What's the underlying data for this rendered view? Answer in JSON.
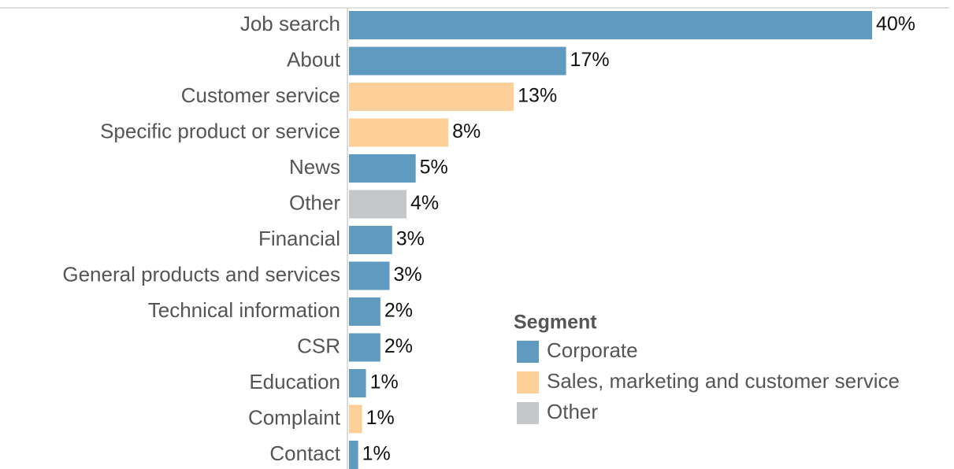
{
  "chart_data": {
    "type": "bar",
    "orientation": "horizontal",
    "categories": [
      "Job search",
      "About",
      "Customer service",
      "Specific product or service",
      "News",
      "Other",
      "Financial",
      "General products and services",
      "Technical information",
      "CSR",
      "Education",
      "Complaint",
      "Contact"
    ],
    "values": [
      40,
      16.6,
      12.6,
      7.6,
      5.1,
      4.4,
      3.3,
      3.1,
      2.4,
      2.4,
      1.3,
      1.0,
      0.7
    ],
    "value_labels": [
      "40%",
      "17%",
      "13%",
      "8%",
      "5%",
      "4%",
      "3%",
      "3%",
      "2%",
      "2%",
      "1%",
      "1%",
      "1%"
    ],
    "colors": [
      "#5f9bc0",
      "#5f9bc0",
      "#fdd09a",
      "#fdd09a",
      "#5f9bc0",
      "#c5c8ca",
      "#5f9bc0",
      "#5f9bc0",
      "#5f9bc0",
      "#5f9bc0",
      "#5f9bc0",
      "#fdd09a",
      "#5f9bc0"
    ],
    "legend": {
      "title": "Segment",
      "items": [
        {
          "name": "Corporate",
          "color": "#5f9bc0"
        },
        {
          "name": "Sales, marketing and customer service",
          "color": "#fdd09a"
        },
        {
          "name": "Other",
          "color": "#c5c8ca"
        }
      ]
    }
  }
}
